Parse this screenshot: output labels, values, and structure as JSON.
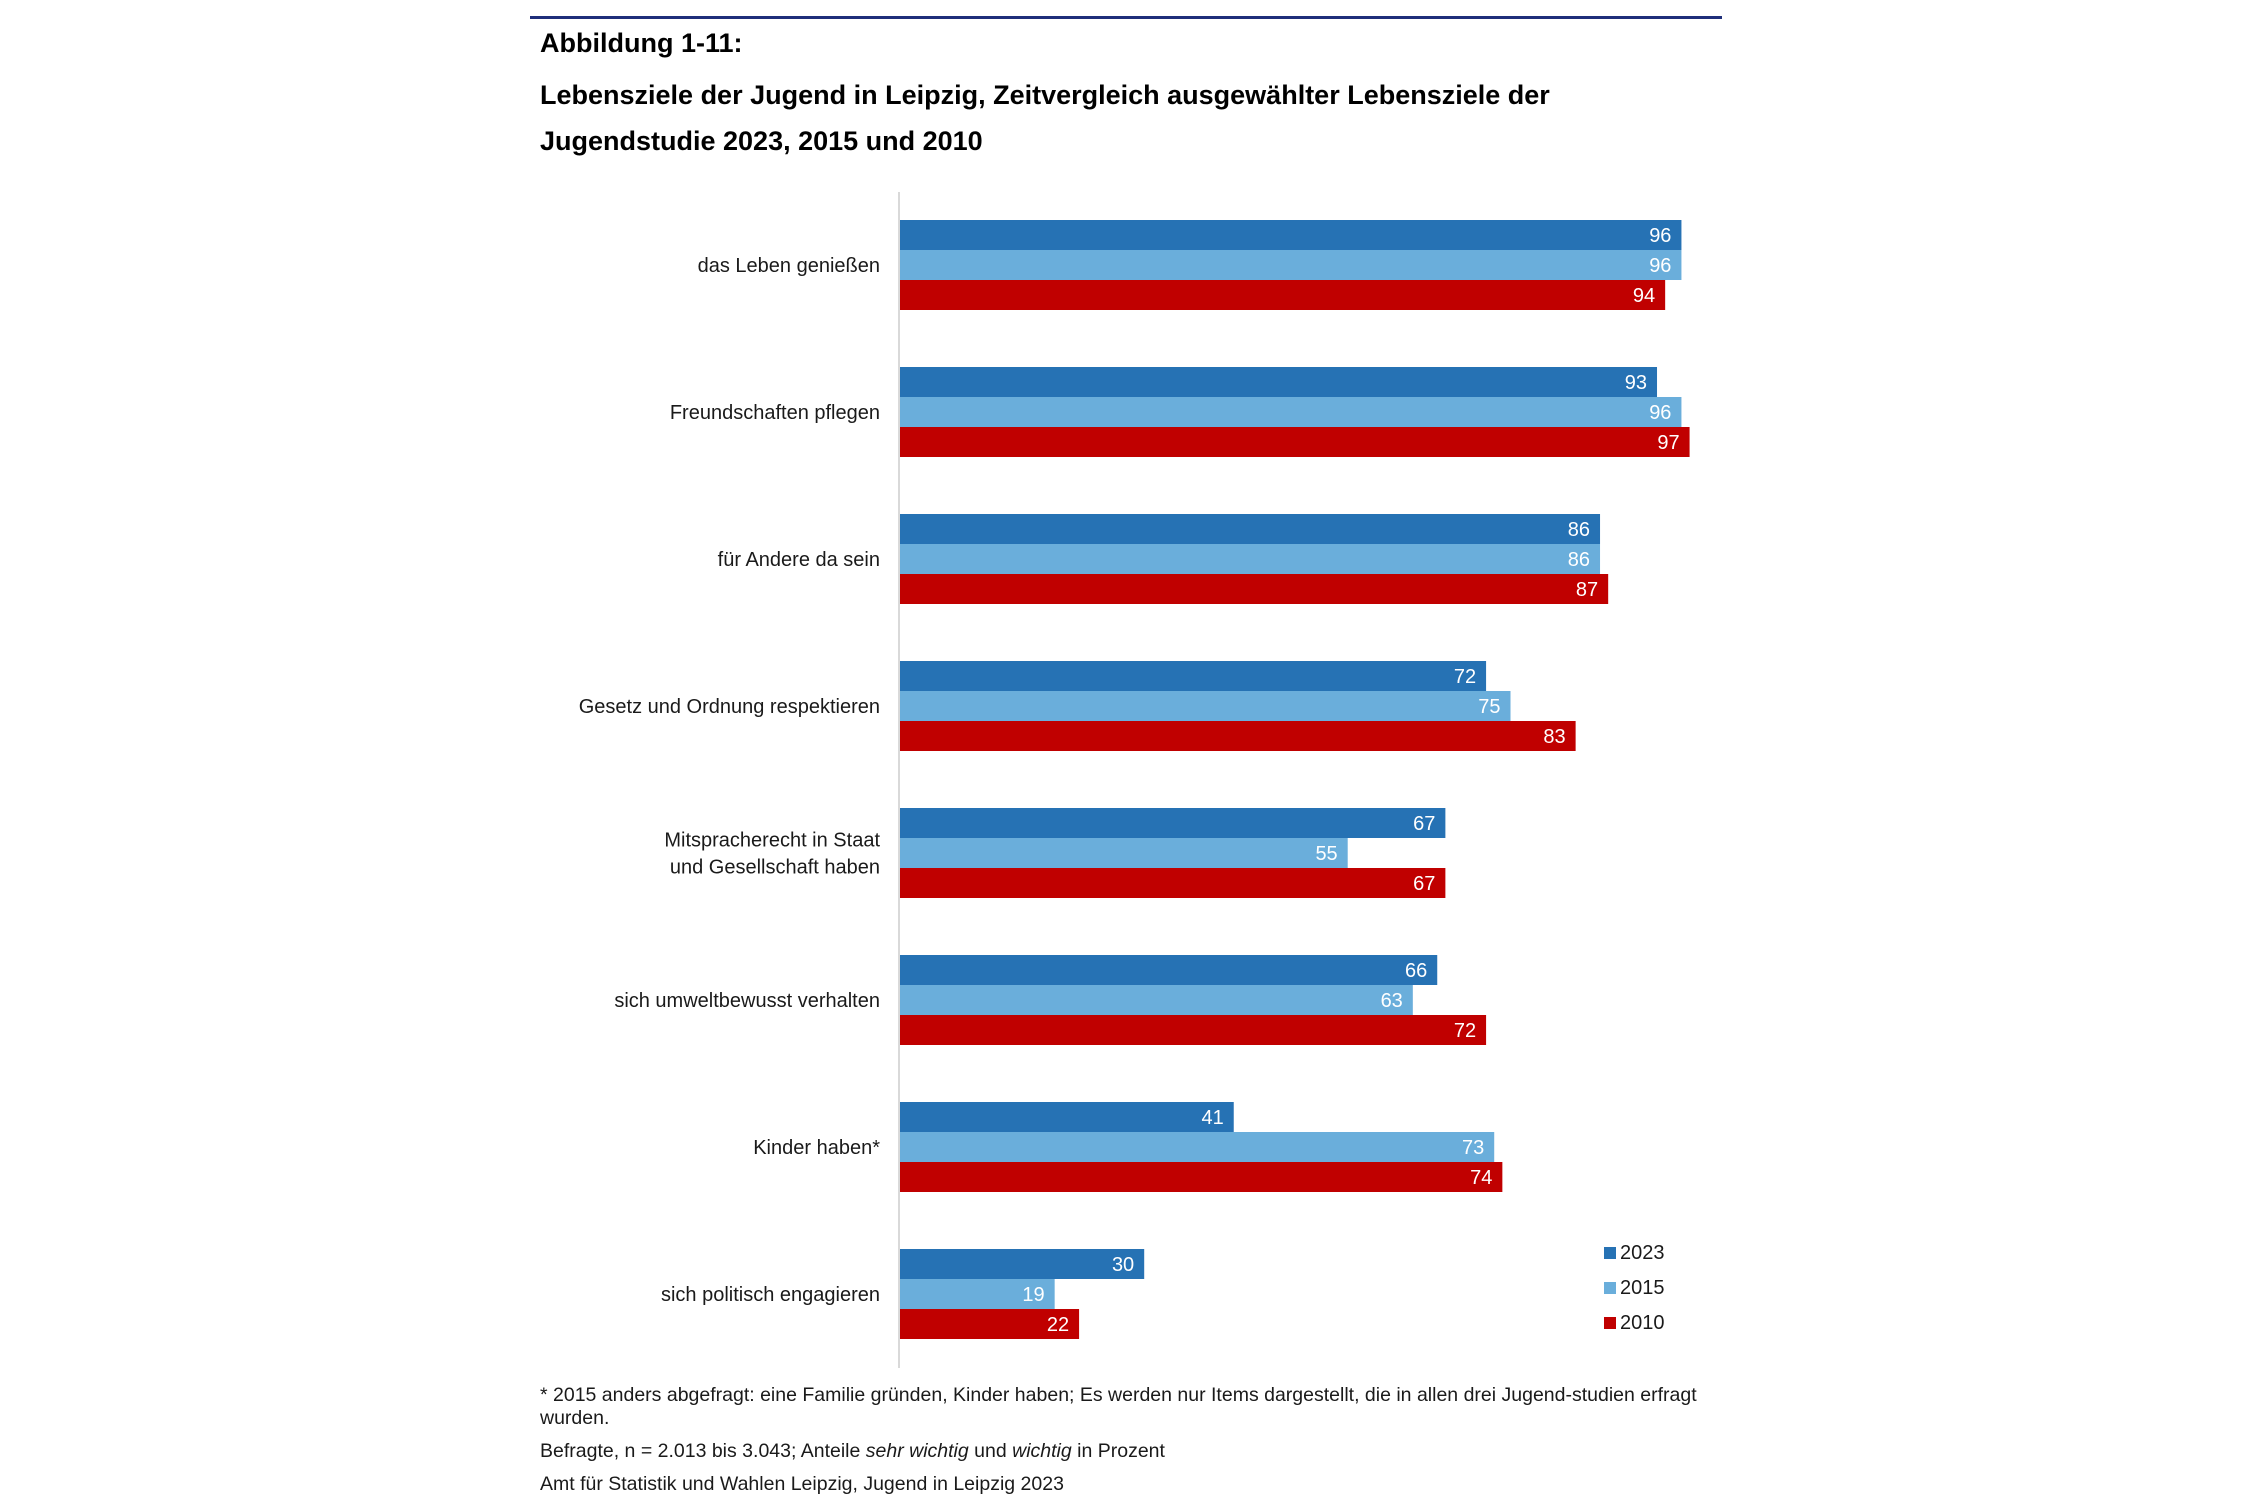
{
  "figure": {
    "label": "Abbildung 1-11:",
    "title": "Lebensziele der Jugend in Leipzig, Zeitvergleich ausgewählter Lebensziele der Jugendstudie 2023, 2015 und 2010"
  },
  "chart_data": {
    "type": "bar",
    "orientation": "horizontal",
    "categories": [
      "das Leben genießen",
      "Freundschaften pflegen",
      "für Andere da sein",
      "Gesetz und Ordnung respektieren",
      "Mitspracherecht in Staat und Gesellschaft haben",
      "sich umweltbewusst verhalten",
      "Kinder haben*",
      "sich politisch engagieren"
    ],
    "category_lines": [
      [
        "das Leben genießen"
      ],
      [
        "Freundschaften pflegen"
      ],
      [
        "für Andere da sein"
      ],
      [
        "Gesetz und Ordnung respektieren"
      ],
      [
        "Mitspracherecht in Staat",
        "und Gesellschaft haben"
      ],
      [
        "sich umweltbewusst verhalten"
      ],
      [
        "Kinder haben*"
      ],
      [
        "sich politisch engagieren"
      ]
    ],
    "series": [
      {
        "name": "2023",
        "color": "#2672b4",
        "values": [
          96,
          93,
          86,
          72,
          67,
          66,
          41,
          30
        ]
      },
      {
        "name": "2015",
        "color": "#6aaedb",
        "values": [
          96,
          96,
          86,
          75,
          55,
          63,
          73,
          19
        ]
      },
      {
        "name": "2010",
        "color": "#c00000",
        "values": [
          94,
          97,
          87,
          83,
          67,
          72,
          74,
          22
        ]
      }
    ],
    "xlim": [
      0,
      100
    ],
    "data_labels": true,
    "grid": false,
    "legend": "bottom-right",
    "axis_color": "#d9d9d9"
  },
  "notes": {
    "footnote": "* 2015 anders abgefragt: eine Familie gründen, Kinder haben; Es werden nur Items dargestellt, die in allen drei Jugend-studien erfragt wurden.",
    "sample_prefix": "Befragte, n = 2.013 bis 3.043; Anteile ",
    "sample_em1": "sehr wichtig",
    "sample_mid": " und ",
    "sample_em2": "wichtig",
    "sample_suffix": " in Prozent",
    "source": "Amt für Statistik und Wahlen Leipzig, Jugend in Leipzig 2023"
  }
}
